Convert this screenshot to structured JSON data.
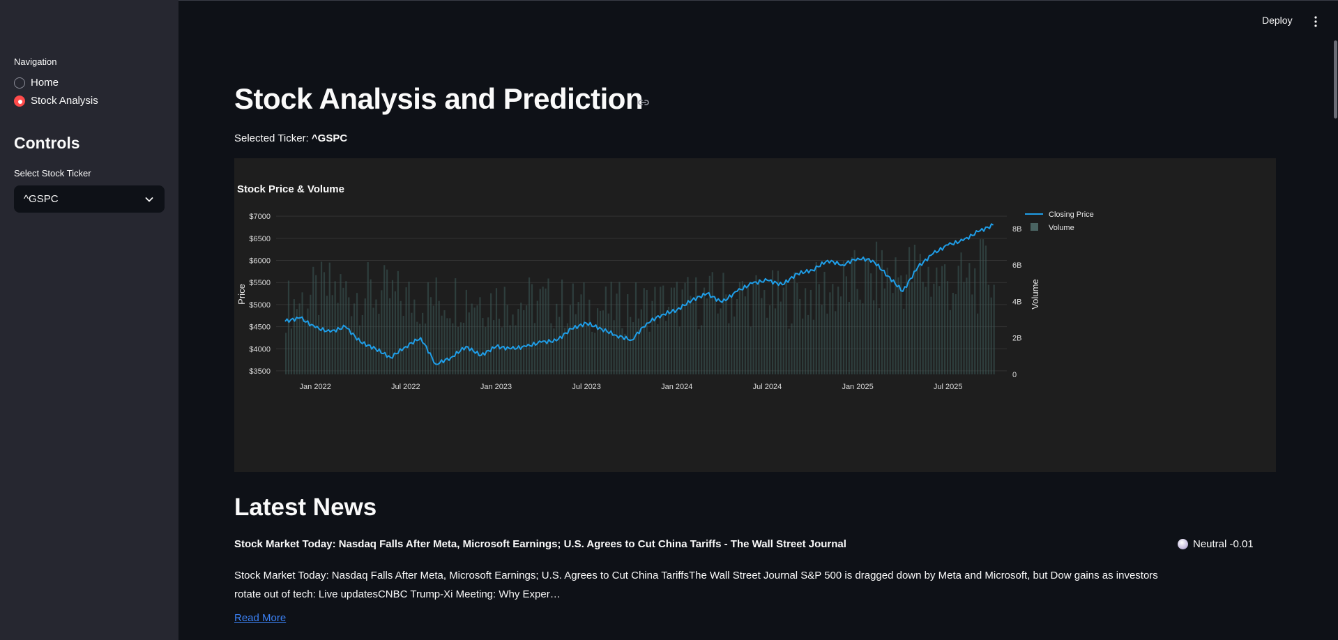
{
  "header": {
    "deploy_label": "Deploy"
  },
  "sidebar": {
    "navigation_label": "Navigation",
    "nav_items": [
      {
        "label": "Home",
        "selected": false
      },
      {
        "label": "Stock Analysis",
        "selected": true
      }
    ],
    "controls_title": "Controls",
    "ticker_select": {
      "label": "Select Stock Ticker",
      "value": "^GSPC"
    }
  },
  "main": {
    "title": "Stock Analysis and Prediction",
    "selected_ticker_prefix": "Selected Ticker:",
    "selected_ticker": "^GSPC"
  },
  "chart_data": {
    "type": "line",
    "title": "Stock Price & Volume",
    "ylabel": "Price",
    "y2label": "Volume",
    "ylim": [
      3420,
      7050
    ],
    "y2lim": [
      0,
      8.8
    ],
    "y_ticks": [
      "$3500",
      "$4000",
      "$4500",
      "$5000",
      "$5500",
      "$6000",
      "$6500",
      "$7000"
    ],
    "y_tick_values": [
      3500,
      4000,
      4500,
      5000,
      5500,
      6000,
      6500,
      7000
    ],
    "y2_ticks": [
      "0",
      "2B",
      "4B",
      "6B",
      "8B"
    ],
    "y2_tick_values": [
      0,
      2,
      4,
      6,
      8
    ],
    "x_ticks": [
      "Jan 2022",
      "Jul 2022",
      "Jan 2023",
      "Jul 2023",
      "Jan 2024",
      "Jul 2024",
      "Jan 2025",
      "Jul 2025"
    ],
    "x_tick_values": [
      "2022-01",
      "2022-07",
      "2023-01",
      "2023-07",
      "2024-01",
      "2024-07",
      "2025-01",
      "2025-07"
    ],
    "legend": {
      "placement": "top-right",
      "entries": [
        "Closing Price",
        "Volume"
      ]
    },
    "colors": {
      "price_line": "#1f9ee8",
      "volume_bar": "#3d5a58",
      "grid": "#333333"
    },
    "series": [
      {
        "name": "Closing Price",
        "x": [
          "2021-11",
          "2021-12",
          "2022-01",
          "2022-02",
          "2022-03",
          "2022-04",
          "2022-05",
          "2022-06",
          "2022-07",
          "2022-08",
          "2022-09",
          "2022-10",
          "2022-11",
          "2022-12",
          "2023-01",
          "2023-02",
          "2023-03",
          "2023-04",
          "2023-05",
          "2023-06",
          "2023-07",
          "2023-08",
          "2023-09",
          "2023-10",
          "2023-11",
          "2023-12",
          "2024-01",
          "2024-02",
          "2024-03",
          "2024-04",
          "2024-05",
          "2024-06",
          "2024-07",
          "2024-08",
          "2024-09",
          "2024-10",
          "2024-11",
          "2024-12",
          "2025-01",
          "2025-02",
          "2025-03",
          "2025-04",
          "2025-05",
          "2025-06",
          "2025-07",
          "2025-08",
          "2025-09",
          "2025-10"
        ],
        "values": [
          4620,
          4700,
          4480,
          4380,
          4500,
          4150,
          4000,
          3800,
          4050,
          4250,
          3650,
          3800,
          4050,
          3850,
          4050,
          4000,
          4050,
          4150,
          4180,
          4450,
          4580,
          4450,
          4300,
          4200,
          4580,
          4770,
          4880,
          5100,
          5250,
          5050,
          5300,
          5480,
          5550,
          5450,
          5700,
          5780,
          6000,
          5900,
          6050,
          6000,
          5650,
          5300,
          5850,
          6150,
          6350,
          6450,
          6650,
          6800
        ]
      },
      {
        "name": "Volume",
        "x": [
          "2021-11",
          "2022-02",
          "2022-05",
          "2022-08",
          "2022-11",
          "2023-02",
          "2023-05",
          "2023-08",
          "2023-11",
          "2024-02",
          "2024-05",
          "2024-08",
          "2024-11",
          "2025-02",
          "2025-05",
          "2025-08",
          "2025-10"
        ],
        "values": [
          3.8,
          4.6,
          4.4,
          4.0,
          4.3,
          4.0,
          3.9,
          3.6,
          3.8,
          4.0,
          4.3,
          4.1,
          4.6,
          5.2,
          5.6,
          4.9,
          5.7
        ]
      }
    ]
  },
  "news": {
    "heading": "Latest News",
    "items": [
      {
        "title": "Stock Market Today: Nasdaq Falls After Meta, Microsoft Earnings; U.S. Agrees to Cut China Tariffs - The Wall Street Journal",
        "sentiment": "Neutral -0.01",
        "body": "Stock Market Today: Nasdaq Falls After Meta, Microsoft Earnings; U.S. Agrees to Cut China TariffsThe Wall Street Journal S&P 500 is dragged down by Meta and Microsoft, but Dow gains as investors rotate out of tech: Live updatesCNBC Trump-Xi Meeting: Why Exper…",
        "link_label": "Read More"
      }
    ]
  }
}
